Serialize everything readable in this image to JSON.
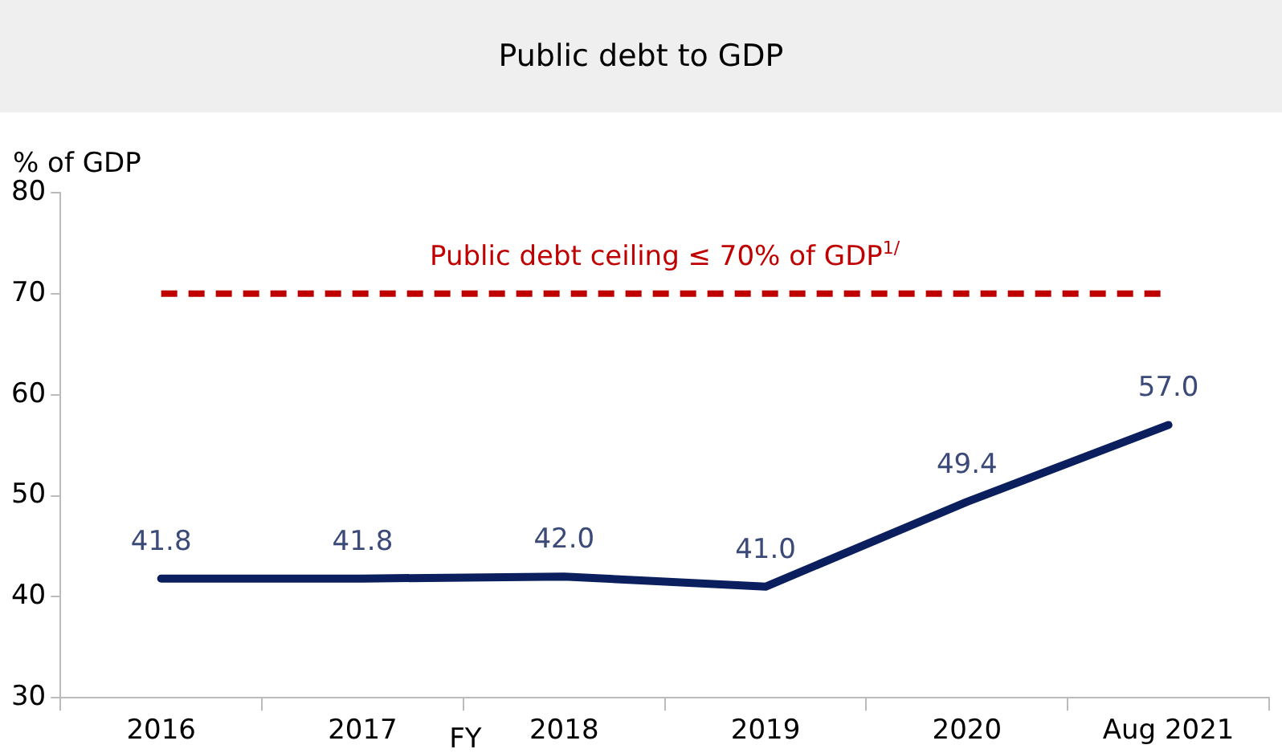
{
  "chart_data": {
    "type": "line",
    "title": "Public debt to GDP",
    "ylabel": "% of GDP",
    "xlabel": "FY",
    "categories": [
      "2016",
      "2017",
      "2018",
      "2019",
      "2020",
      "Aug 2021"
    ],
    "series": [
      {
        "color": "#0b1f5e",
        "values": [
          41.8,
          41.8,
          42.0,
          41.0,
          49.4,
          57.0
        ],
        "value_labels": [
          "41.8",
          "41.8",
          "42.0",
          "41.0",
          "49.4",
          "57.0"
        ]
      }
    ],
    "ylim": [
      30,
      80
    ],
    "yticks": [
      30,
      40,
      50,
      60,
      70,
      80
    ],
    "grid": false,
    "legend": false,
    "marker": "none",
    "line_style": "solid",
    "ref_lines": [
      {
        "axis": "y",
        "value": 70,
        "label": "Public debt ceiling ≤ 70% of GDP$^{1/}$",
        "color": "#c00000",
        "line_style": "dashed"
      }
    ]
  }
}
